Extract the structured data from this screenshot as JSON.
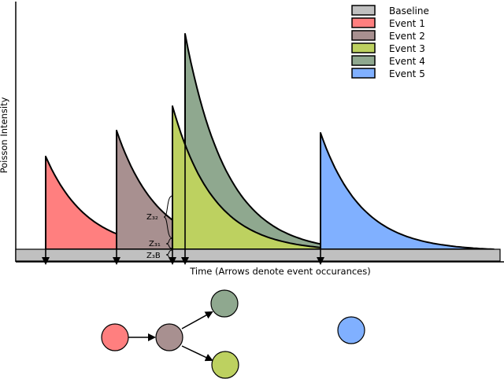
{
  "axes": {
    "y_label": "Poisson Intensity",
    "x_label": "Time (Arrows denote event occurances)"
  },
  "legend": [
    {
      "label": "Baseline",
      "color": "#c0c0c0"
    },
    {
      "label": "Event 1",
      "color": "#ff7f7f"
    },
    {
      "label": "Event 2",
      "color": "#a89090"
    },
    {
      "label": "Event 3",
      "color": "#bdd160"
    },
    {
      "label": "Event 4",
      "color": "#8fa88f"
    },
    {
      "label": "Event 5",
      "color": "#80b0ff"
    }
  ],
  "annotations": {
    "z32": "Z₃₂",
    "z31": "Z₃₁",
    "z3b": "Z₃B"
  },
  "graph": {
    "nodes": [
      {
        "id": "event-1",
        "color": "#ff7f7f"
      },
      {
        "id": "event-2",
        "color": "#a89090"
      },
      {
        "id": "event-3",
        "color": "#bdd160"
      },
      {
        "id": "event-4",
        "color": "#8fa88f"
      },
      {
        "id": "event-5",
        "color": "#80b0ff"
      }
    ],
    "edges": [
      {
        "from": "event-1",
        "to": "event-2"
      },
      {
        "from": "event-2",
        "to": "event-4"
      },
      {
        "from": "event-2",
        "to": "event-3"
      }
    ]
  }
}
